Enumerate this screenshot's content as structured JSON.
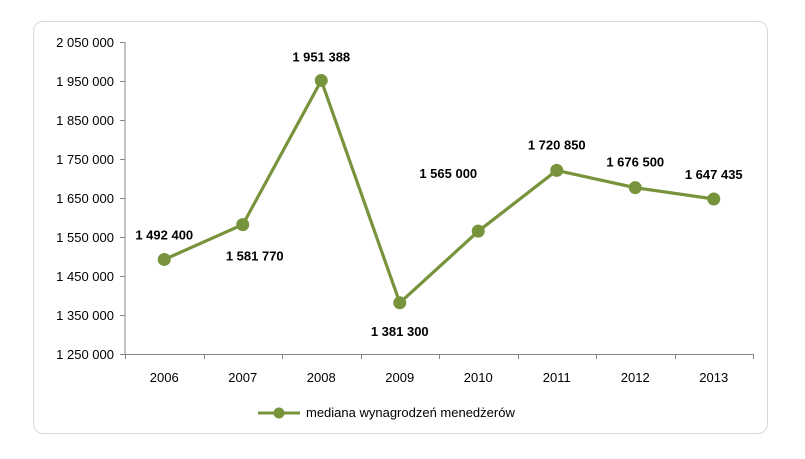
{
  "chart_data": {
    "type": "line",
    "title": "",
    "xlabel": "",
    "ylabel": "",
    "categories": [
      "2006",
      "2007",
      "2008",
      "2009",
      "2010",
      "2011",
      "2012",
      "2013"
    ],
    "series": [
      {
        "name": "mediana wynagrodzeń menedżerów",
        "values": [
          1492400,
          1581770,
          1951388,
          1381300,
          1565000,
          1720850,
          1676500,
          1647435
        ],
        "data_labels": [
          "1 492 400",
          "1 581 770",
          "1 951 388",
          "1 381 300",
          "1 565 000",
          "1 720 850",
          "1 676 500",
          "1 647 435"
        ],
        "color": "#77933c"
      }
    ],
    "ylim": [
      1250000,
      2050000
    ],
    "yticks": [
      1250000,
      1350000,
      1450000,
      1550000,
      1650000,
      1750000,
      1850000,
      1950000,
      2050000
    ],
    "ytick_labels": [
      "1 250 000",
      "1 350 000",
      "1 450 000",
      "1 550 000",
      "1 650 000",
      "1 750 000",
      "1 850 000",
      "1 950 000",
      "2 050 000"
    ],
    "grid": false,
    "legend_position": "bottom",
    "axis_color": "#868686"
  }
}
